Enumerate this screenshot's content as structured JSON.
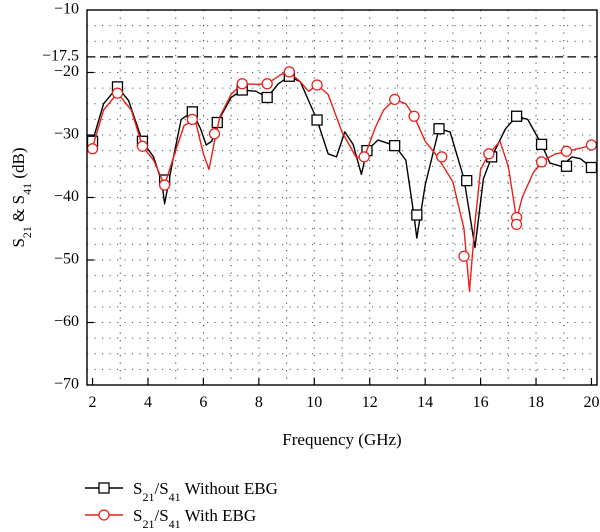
{
  "chart_data": {
    "type": "line",
    "xlabel": "Frequency (GHz)",
    "ylabel": {
      "parts": [
        {
          "text": "S",
          "sub": false
        },
        {
          "text": "21",
          "sub": true
        },
        {
          "text": " & S",
          "sub": false
        },
        {
          "text": "41",
          "sub": true
        },
        {
          "text": " (dB)",
          "sub": false
        }
      ]
    },
    "xlim": [
      1.8,
      20.2
    ],
    "ylim": [
      -70,
      -10
    ],
    "xticks": [
      2,
      4,
      6,
      8,
      10,
      12,
      14,
      16,
      18,
      20
    ],
    "xtick_labels": [
      "2",
      "4",
      "6",
      "8",
      "10",
      "12",
      "14",
      "16",
      "18",
      "20"
    ],
    "yticks": [
      -10,
      -20,
      -30,
      -40,
      -50,
      -60,
      -70
    ],
    "ytick_labels": [
      "−10",
      "−20",
      "−30",
      "−40",
      "−50",
      "−60",
      "−70"
    ],
    "grid": "dotted",
    "annotation_line": {
      "y": -17.5,
      "label": "−17.5",
      "style": "dashed"
    },
    "series": [
      {
        "name": "S21/S41 Without EBG",
        "legend": [
          {
            "text": "S",
            "sub": false
          },
          {
            "text": "21",
            "sub": true
          },
          {
            "text": "/S",
            "sub": false
          },
          {
            "text": "41",
            "sub": true
          },
          {
            "text": " Without EBG",
            "sub": false
          }
        ],
        "color": "#000000",
        "marker": "square",
        "line": [
          [
            2.0,
            -31.0
          ],
          [
            2.4,
            -25.0
          ],
          [
            2.9,
            -22.3
          ],
          [
            3.3,
            -24.5
          ],
          [
            3.8,
            -31.0
          ],
          [
            4.2,
            -33.5
          ],
          [
            4.5,
            -37.5
          ],
          [
            4.6,
            -41.0
          ],
          [
            4.9,
            -34.0
          ],
          [
            5.2,
            -27.5
          ],
          [
            5.6,
            -26.3
          ],
          [
            5.9,
            -29.0
          ],
          [
            6.1,
            -31.6
          ],
          [
            6.3,
            -31.0
          ],
          [
            6.5,
            -28.0
          ],
          [
            7.0,
            -24.0
          ],
          [
            7.4,
            -22.8
          ],
          [
            7.9,
            -23.0
          ],
          [
            8.3,
            -24.0
          ],
          [
            8.7,
            -21.8
          ],
          [
            9.1,
            -20.6
          ],
          [
            9.5,
            -21.5
          ],
          [
            10.1,
            -27.6
          ],
          [
            10.5,
            -33.0
          ],
          [
            10.8,
            -33.5
          ],
          [
            11.1,
            -29.5
          ],
          [
            11.4,
            -31.5
          ],
          [
            11.7,
            -36.3
          ],
          [
            11.9,
            -32.5
          ],
          [
            12.3,
            -30.8
          ],
          [
            12.9,
            -31.7
          ],
          [
            13.3,
            -34.0
          ],
          [
            13.6,
            -43.0
          ],
          [
            13.7,
            -46.5
          ],
          [
            14.0,
            -38.0
          ],
          [
            14.5,
            -29.0
          ],
          [
            14.9,
            -29.5
          ],
          [
            15.4,
            -37.0
          ],
          [
            15.8,
            -48.0
          ],
          [
            16.1,
            -37.0
          ],
          [
            16.4,
            -33.5
          ],
          [
            16.9,
            -29.0
          ],
          [
            17.3,
            -27.0
          ],
          [
            17.7,
            -27.5
          ],
          [
            18.2,
            -31.5
          ],
          [
            18.5,
            -34.5
          ],
          [
            18.9,
            -35.0
          ],
          [
            19.3,
            -33.5
          ],
          [
            19.6,
            -33.8
          ],
          [
            20.0,
            -35.2
          ]
        ],
        "markers": [
          [
            2.0,
            -31.0
          ],
          [
            2.9,
            -22.3
          ],
          [
            3.8,
            -31.0
          ],
          [
            4.6,
            -37.2
          ],
          [
            5.6,
            -26.3
          ],
          [
            6.5,
            -28.0
          ],
          [
            7.4,
            -22.8
          ],
          [
            8.3,
            -24.0
          ],
          [
            9.1,
            -20.6
          ],
          [
            10.1,
            -27.6
          ],
          [
            11.9,
            -32.5
          ],
          [
            12.9,
            -31.7
          ],
          [
            13.7,
            -42.8
          ],
          [
            14.5,
            -29.0
          ],
          [
            15.5,
            -37.3
          ],
          [
            16.4,
            -33.5
          ],
          [
            17.3,
            -27.0
          ],
          [
            18.2,
            -31.5
          ],
          [
            19.1,
            -35.0
          ],
          [
            20.0,
            -35.2
          ]
        ]
      },
      {
        "name": "S21/S41 With EBG",
        "legend": [
          {
            "text": "S",
            "sub": false
          },
          {
            "text": "21",
            "sub": true
          },
          {
            "text": "/S",
            "sub": false
          },
          {
            "text": "41",
            "sub": true
          },
          {
            "text": " With EBG",
            "sub": false
          }
        ],
        "color": "#e8201c",
        "marker": "circle",
        "line": [
          [
            2.0,
            -32.0
          ],
          [
            2.4,
            -26.0
          ],
          [
            2.9,
            -23.3
          ],
          [
            3.4,
            -26.0
          ],
          [
            3.8,
            -31.8
          ],
          [
            4.2,
            -34.0
          ],
          [
            4.6,
            -38.0
          ],
          [
            5.0,
            -32.5
          ],
          [
            5.3,
            -28.5
          ],
          [
            5.7,
            -27.5
          ],
          [
            6.0,
            -33.0
          ],
          [
            6.2,
            -35.5
          ],
          [
            6.4,
            -31.0
          ],
          [
            6.6,
            -27.0
          ],
          [
            7.0,
            -23.5
          ],
          [
            7.4,
            -21.8
          ],
          [
            7.9,
            -21.9
          ],
          [
            8.3,
            -21.8
          ],
          [
            8.8,
            -20.3
          ],
          [
            9.1,
            -19.9
          ],
          [
            9.5,
            -21.5
          ],
          [
            9.8,
            -23.0
          ],
          [
            10.1,
            -22.0
          ],
          [
            10.5,
            -23.5
          ],
          [
            11.0,
            -29.5
          ],
          [
            11.5,
            -33.5
          ],
          [
            11.8,
            -33.6
          ],
          [
            12.2,
            -28.8
          ],
          [
            12.5,
            -26.0
          ],
          [
            12.9,
            -24.3
          ],
          [
            13.3,
            -25.0
          ],
          [
            13.6,
            -27.0
          ],
          [
            14.0,
            -31.0
          ],
          [
            14.4,
            -33.2
          ],
          [
            15.0,
            -37.5
          ],
          [
            15.4,
            -45.0
          ],
          [
            15.6,
            -55.0
          ],
          [
            15.8,
            -44.0
          ],
          [
            16.0,
            -35.5
          ],
          [
            16.3,
            -33.0
          ],
          [
            16.7,
            -31.0
          ],
          [
            17.0,
            -35.0
          ],
          [
            17.3,
            -43.5
          ],
          [
            17.5,
            -40.0
          ],
          [
            17.9,
            -36.0
          ],
          [
            18.3,
            -34.0
          ],
          [
            18.7,
            -33.0
          ],
          [
            19.0,
            -32.8
          ],
          [
            19.4,
            -32.3
          ],
          [
            19.7,
            -32.0
          ],
          [
            20.0,
            -31.6
          ]
        ],
        "markers": [
          [
            2.0,
            -32.2
          ],
          [
            2.9,
            -23.3
          ],
          [
            3.8,
            -31.8
          ],
          [
            4.6,
            -38.0
          ],
          [
            5.6,
            -27.5
          ],
          [
            6.4,
            -29.8
          ],
          [
            7.4,
            -21.8
          ],
          [
            8.3,
            -21.8
          ],
          [
            9.1,
            -19.9
          ],
          [
            10.1,
            -22.0
          ],
          [
            11.8,
            -33.5
          ],
          [
            12.9,
            -24.3
          ],
          [
            13.6,
            -27.0
          ],
          [
            14.6,
            -33.5
          ],
          [
            15.4,
            -49.4
          ],
          [
            16.3,
            -33.0
          ],
          [
            17.3,
            -43.2
          ],
          [
            17.3,
            -44.3
          ],
          [
            18.2,
            -34.3
          ],
          [
            19.1,
            -32.6
          ],
          [
            20.0,
            -31.6
          ]
        ]
      }
    ]
  }
}
